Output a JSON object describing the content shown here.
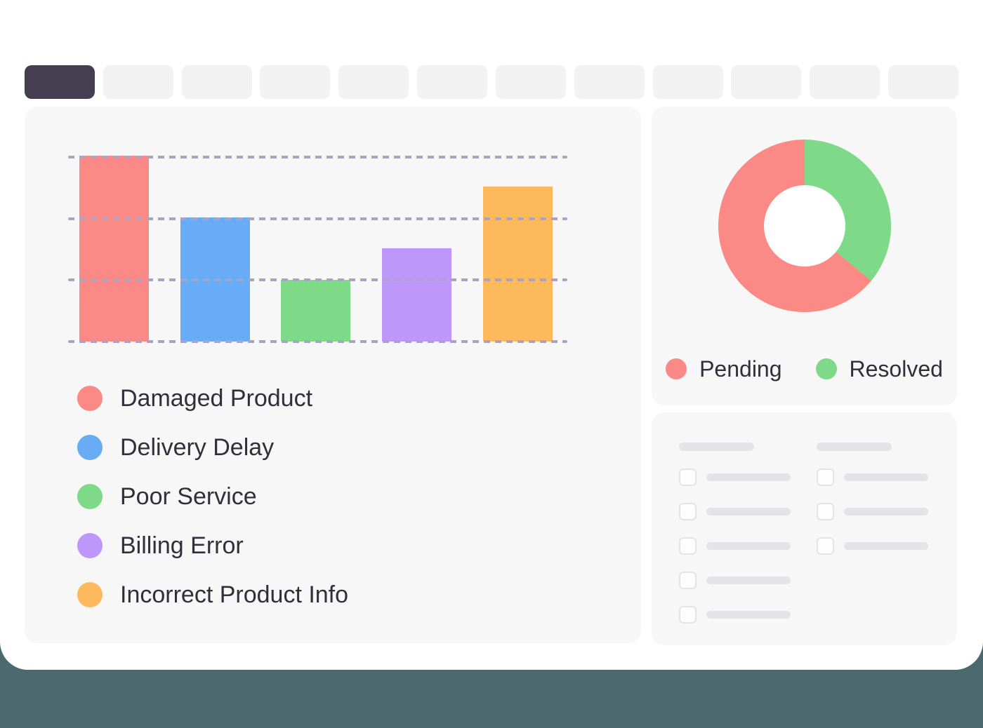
{
  "colors": {
    "card_bg": "#FFFFFF",
    "backdrop": "#4D6970",
    "panel_bg": "#F7F7F8",
    "tab_inactive": "#F2F2F3",
    "tab_active": "#453E51",
    "gridline": "#A8A3C7",
    "text": "#30303A",
    "placeholder": "#E4E4E6",
    "red": "#FB8985",
    "blue": "#67ACF5",
    "green": "#7EDA89",
    "purple": "#BD97F9",
    "orange": "#FDB95C"
  },
  "tab_bar": {
    "count": 12,
    "active_index": 0
  },
  "chart_data": [
    {
      "type": "bar",
      "title": "",
      "categories": [
        "Damaged Product",
        "Delivery Delay",
        "Poor Service",
        "Billing Error",
        "Incorrect Product Info"
      ],
      "values": [
        3,
        2,
        1,
        1.5,
        2.5
      ],
      "colors": [
        "#FB8985",
        "#67ACF5",
        "#7EDA89",
        "#BD97F9",
        "#FDB95C"
      ],
      "ylim": [
        0,
        3
      ],
      "gridline_count": 4,
      "grid": "dashed horizontal",
      "legend_position": "below-left"
    },
    {
      "type": "pie",
      "donut": true,
      "categories": [
        "Pending",
        "Resolved"
      ],
      "values": [
        64,
        36
      ],
      "colors": [
        "#FB8985",
        "#7EDA89"
      ],
      "draw_order": [
        1,
        0
      ],
      "legend_position": "bottom"
    }
  ],
  "placeholder_panel": {
    "columns": [
      {
        "header": true,
        "rows": 5
      },
      {
        "header": true,
        "rows": 3
      }
    ]
  }
}
